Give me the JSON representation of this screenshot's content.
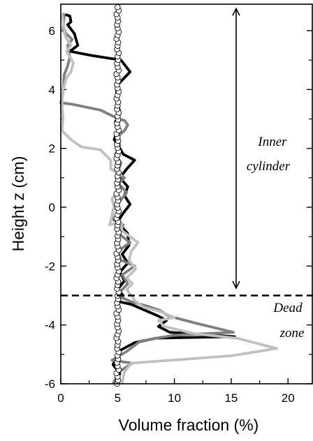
{
  "chart_data": {
    "type": "line",
    "title": "",
    "xlabel": "Volume fraction (%)",
    "ylabel": "Height z (cm)",
    "xlim": [
      0,
      22.2
    ],
    "ylim": [
      -6,
      6.9
    ],
    "xticks": [
      0,
      5,
      10,
      15,
      20
    ],
    "xtick_labels": [
      "0",
      "5",
      "10",
      "15",
      "20"
    ],
    "yticks": [
      -6,
      -4,
      -2,
      0,
      2,
      4,
      6
    ],
    "ytick_labels": [
      "-6",
      "-4",
      "-2",
      "0",
      "2",
      "4",
      "6"
    ],
    "grid": false,
    "legend": "none",
    "series": [
      {
        "color": "#000000",
        "style": "line",
        "points": [
          [
            0.4,
            6.55
          ],
          [
            0.8,
            6.5
          ],
          [
            0.9,
            6.3
          ],
          [
            0.6,
            6.2
          ],
          [
            1.2,
            5.9
          ],
          [
            1.5,
            5.5
          ],
          [
            0.8,
            5.3
          ],
          [
            2.8,
            5.15
          ],
          [
            5.3,
            5.0
          ],
          [
            6.1,
            4.6
          ],
          [
            5.1,
            4.2
          ],
          [
            4.9,
            4.0
          ],
          [
            5.0,
            3.6
          ],
          [
            5.2,
            3.2
          ],
          [
            4.8,
            2.9
          ],
          [
            5.0,
            2.6
          ],
          [
            4.7,
            2.3
          ],
          [
            5.2,
            2.0
          ],
          [
            5.5,
            1.8
          ],
          [
            6.5,
            1.6
          ],
          [
            5.8,
            1.3
          ],
          [
            5.2,
            1.0
          ],
          [
            5.9,
            0.7
          ],
          [
            5.6,
            0.4
          ],
          [
            6.1,
            0.1
          ],
          [
            5.5,
            -0.2
          ],
          [
            5.0,
            -0.5
          ],
          [
            5.9,
            -0.9
          ],
          [
            6.0,
            -1.3
          ],
          [
            5.4,
            -1.6
          ],
          [
            5.9,
            -1.9
          ],
          [
            5.2,
            -2.2
          ],
          [
            5.6,
            -2.5
          ],
          [
            5.0,
            -2.8
          ],
          [
            5.5,
            -3.0
          ],
          [
            5.0,
            -3.2
          ],
          [
            6.2,
            -3.3
          ],
          [
            7.4,
            -3.5
          ],
          [
            8.6,
            -3.7
          ],
          [
            9.3,
            -3.85
          ],
          [
            8.6,
            -4.05
          ],
          [
            9.6,
            -4.25
          ],
          [
            15.3,
            -4.4
          ],
          [
            8.4,
            -4.45
          ],
          [
            6.5,
            -4.6
          ],
          [
            5.3,
            -4.85
          ],
          [
            4.9,
            -5.1
          ],
          [
            4.6,
            -5.35
          ],
          [
            5.2,
            -5.65
          ],
          [
            4.8,
            -6.0
          ]
        ]
      },
      {
        "color": "#7f7f7f",
        "style": "line",
        "points": [
          [
            0.2,
            6.6
          ],
          [
            0.3,
            6.5
          ],
          [
            0.2,
            6.0
          ],
          [
            1.0,
            5.7
          ],
          [
            0.6,
            5.5
          ],
          [
            0.8,
            5.1
          ],
          [
            0.6,
            4.8
          ],
          [
            0.3,
            4.5
          ],
          [
            0.2,
            3.9
          ],
          [
            0.0,
            3.55
          ],
          [
            1.0,
            3.5
          ],
          [
            3.5,
            3.3
          ],
          [
            5.1,
            3.0
          ],
          [
            5.6,
            2.95
          ],
          [
            5.9,
            2.8
          ],
          [
            5.6,
            2.6
          ],
          [
            5.0,
            2.4
          ],
          [
            5.2,
            2.1
          ],
          [
            4.8,
            1.8
          ],
          [
            5.3,
            1.5
          ],
          [
            5.0,
            1.2
          ],
          [
            5.6,
            1.0
          ],
          [
            5.1,
            0.8
          ],
          [
            5.8,
            0.5
          ],
          [
            5.2,
            0.2
          ],
          [
            4.6,
            -0.1
          ],
          [
            4.5,
            -0.4
          ],
          [
            5.5,
            -0.6
          ],
          [
            5.1,
            -0.9
          ],
          [
            6.1,
            -1.2
          ],
          [
            5.0,
            -1.5
          ],
          [
            5.3,
            -1.8
          ],
          [
            6.5,
            -2.0
          ],
          [
            5.4,
            -2.3
          ],
          [
            5.9,
            -2.6
          ],
          [
            5.4,
            -2.8
          ],
          [
            5.0,
            -3.0
          ],
          [
            6.1,
            -3.2
          ],
          [
            7.5,
            -3.35
          ],
          [
            8.7,
            -3.5
          ],
          [
            9.5,
            -3.7
          ],
          [
            12.0,
            -3.95
          ],
          [
            15.2,
            -4.25
          ],
          [
            10.0,
            -4.35
          ],
          [
            8.4,
            -4.45
          ],
          [
            7.0,
            -4.55
          ],
          [
            5.8,
            -4.9
          ],
          [
            4.5,
            -5.2
          ],
          [
            6.3,
            -5.3
          ],
          [
            5.1,
            -5.6
          ],
          [
            4.6,
            -6.0
          ]
        ]
      },
      {
        "color": "#c0c0c0",
        "style": "line",
        "points": [
          [
            0.1,
            6.6
          ],
          [
            0.4,
            5.8
          ],
          [
            0.9,
            5.5
          ],
          [
            0.5,
            5.3
          ],
          [
            1.1,
            4.9
          ],
          [
            0.9,
            4.6
          ],
          [
            0.5,
            4.4
          ],
          [
            0.2,
            4.0
          ],
          [
            0.1,
            3.5
          ],
          [
            0.2,
            3.0
          ],
          [
            0.1,
            2.6
          ],
          [
            0.9,
            2.3
          ],
          [
            1.8,
            2.05
          ],
          [
            3.5,
            1.95
          ],
          [
            4.4,
            1.6
          ],
          [
            4.4,
            1.3
          ],
          [
            5.3,
            1.1
          ],
          [
            4.9,
            0.8
          ],
          [
            5.2,
            0.55
          ],
          [
            4.5,
            0.3
          ],
          [
            4.7,
            0.0
          ],
          [
            4.5,
            -0.3
          ],
          [
            4.3,
            -0.6
          ],
          [
            5.3,
            -0.5
          ],
          [
            5.4,
            -0.8
          ],
          [
            6.8,
            -1.2
          ],
          [
            6.2,
            -1.5
          ],
          [
            6.0,
            -1.8
          ],
          [
            6.6,
            -2.1
          ],
          [
            5.8,
            -2.4
          ],
          [
            6.3,
            -2.6
          ],
          [
            5.8,
            -2.8
          ],
          [
            6.2,
            -3.0
          ],
          [
            6.6,
            -3.2
          ],
          [
            7.3,
            -3.4
          ],
          [
            8.8,
            -3.55
          ],
          [
            10.0,
            -3.75
          ],
          [
            8.6,
            -3.85
          ],
          [
            9.1,
            -4.05
          ],
          [
            11.8,
            -4.3
          ],
          [
            15.5,
            -4.45
          ],
          [
            19.0,
            -4.8
          ],
          [
            15.0,
            -5.05
          ],
          [
            6.2,
            -5.3
          ],
          [
            5.6,
            -5.6
          ],
          [
            5.4,
            -6.0
          ]
        ]
      },
      {
        "color": "#000000",
        "style": "open-circles",
        "x": [
          4.95,
          5.05,
          5.0,
          4.9,
          5.1,
          5.0,
          4.95,
          5.05,
          5.0,
          5.1,
          4.95,
          5.0,
          5.05,
          4.9,
          5.0,
          5.1,
          5.0,
          4.95,
          5.05,
          5.0,
          4.9,
          5.1,
          5.0,
          4.95,
          5.05,
          5.0,
          5.1,
          4.95,
          5.0,
          5.05,
          4.9,
          5.0,
          5.1,
          5.0,
          4.95,
          5.05,
          5.0,
          4.9,
          5.1,
          5.0,
          4.95,
          5.05,
          5.0,
          5.1,
          4.95,
          5.0,
          5.05,
          4.9,
          5.0,
          5.1,
          5.0,
          4.95,
          5.05,
          5.0,
          4.9,
          5.1,
          5.0,
          4.95,
          5.05,
          5.0,
          5.1,
          4.95,
          5.0,
          5.05,
          4.9,
          5.0,
          5.1,
          5.0,
          4.95,
          5.05,
          5.0,
          4.9,
          5.1,
          5.0,
          4.95,
          5.05,
          5.0,
          5.1,
          4.95,
          5.0,
          5.05,
          4.9,
          5.0,
          5.1,
          5.0,
          4.95,
          5.05,
          5.0,
          4.9,
          5.1,
          5.0,
          4.95,
          5.05,
          5.0,
          5.1,
          4.95,
          5.0,
          5.05,
          4.9,
          5.0,
          5.1,
          5.0,
          4.95,
          5.05,
          5.0,
          4.9,
          5.1,
          5.0
        ],
        "y_start": -6.0,
        "y_end": 6.8
      }
    ],
    "annotations": {
      "inner_cylinder_line1": "Inner",
      "inner_cylinder_line2": "cylinder",
      "dead_zone_line1": "Dead",
      "dead_zone_line2": "zone",
      "arrow_y_range": [
        -2.75,
        6.75
      ],
      "dashed_line_y": -3.0
    }
  }
}
